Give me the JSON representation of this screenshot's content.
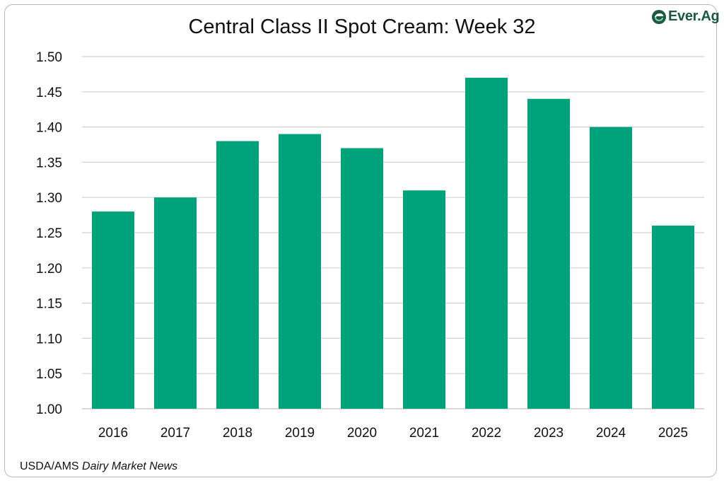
{
  "colors": {
    "bar": "#00a27c",
    "grid": "#d0d0d0",
    "logo": "#1c5a3f"
  },
  "logo": {
    "text": "Ever.Ag",
    "icon": "ever-ag-logo-icon"
  },
  "source": {
    "prefix": "USDA/AMS ",
    "italic": "Dairy Market News"
  },
  "chart_data": {
    "type": "bar",
    "title": "Central Class II Spot Cream: Week 32",
    "xlabel": "",
    "ylabel": "",
    "categories": [
      "2016",
      "2017",
      "2018",
      "2019",
      "2020",
      "2021",
      "2022",
      "2023",
      "2024",
      "2025"
    ],
    "values": [
      1.28,
      1.3,
      1.38,
      1.39,
      1.37,
      1.31,
      1.47,
      1.44,
      1.4,
      1.26
    ],
    "ylim": [
      1.0,
      1.5
    ],
    "yticks": [
      "1.00",
      "1.05",
      "1.10",
      "1.15",
      "1.20",
      "1.25",
      "1.30",
      "1.35",
      "1.40",
      "1.45",
      "1.50"
    ],
    "grid": true,
    "legend": "none"
  }
}
